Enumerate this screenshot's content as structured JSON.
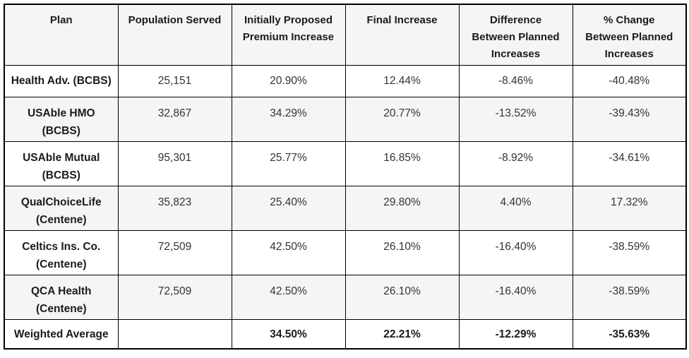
{
  "colors": {
    "border": "#000000",
    "stripe_background": "#f5f5f5",
    "header_background": "#f5f5f5",
    "heading_text": "#1b1b1b",
    "body_text": "#333333"
  },
  "table": {
    "columns": [
      {
        "label": "Plan",
        "lines": [
          "Plan"
        ]
      },
      {
        "label": "Population Served",
        "lines": [
          "Population Served"
        ]
      },
      {
        "label": "Initially Proposed Premium Increase",
        "lines": [
          "Initially Proposed",
          "Premium Increase"
        ]
      },
      {
        "label": "Final Increase",
        "lines": [
          "Final Increase"
        ]
      },
      {
        "label": "Difference Between Planned Increases",
        "lines": [
          "Difference",
          "Between Planned",
          "Increases"
        ]
      },
      {
        "label": "% Change Between Planned Increases",
        "lines": [
          "% Change",
          "Between Planned",
          "Increases"
        ]
      }
    ],
    "rows": [
      {
        "plan": "Health Adv. (BCBS)",
        "plan_lines": [
          "Health Adv. (BCBS)"
        ],
        "population": "25,151",
        "initially_proposed": "20.90%",
        "final_increase": "12.44%",
        "difference": "-8.46%",
        "pct_change": "-40.48%"
      },
      {
        "plan": "USAble HMO (BCBS)",
        "plan_lines": [
          "USAble HMO",
          "(BCBS)"
        ],
        "population": "32,867",
        "initially_proposed": "34.29%",
        "final_increase": "20.77%",
        "difference": "-13.52%",
        "pct_change": "-39.43%"
      },
      {
        "plan": "USAble Mutual (BCBS)",
        "plan_lines": [
          "USAble Mutual",
          "(BCBS)"
        ],
        "population": "95,301",
        "initially_proposed": "25.77%",
        "final_increase": "16.85%",
        "difference": "-8.92%",
        "pct_change": "-34.61%"
      },
      {
        "plan": "QualChoiceLife (Centene)",
        "plan_lines": [
          "QualChoiceLife",
          "(Centene)"
        ],
        "population": "35,823",
        "initially_proposed": "25.40%",
        "final_increase": "29.80%",
        "difference": "4.40%",
        "pct_change": "17.32%"
      },
      {
        "plan": "Celtics Ins. Co. (Centene)",
        "plan_lines": [
          "Celtics Ins. Co.",
          "(Centene)"
        ],
        "population": "72,509",
        "initially_proposed": "42.50%",
        "final_increase": "26.10%",
        "difference": "-16.40%",
        "pct_change": "-38.59%"
      },
      {
        "plan": "QCA Health (Centene)",
        "plan_lines": [
          "QCA Health",
          "(Centene)"
        ],
        "population": "72,509",
        "initially_proposed": "42.50%",
        "final_increase": "26.10%",
        "difference": "-16.40%",
        "pct_change": "-38.59%"
      }
    ],
    "footer_row": {
      "plan": "Weighted Average",
      "population": "",
      "initially_proposed": "34.50%",
      "final_increase": "22.21%",
      "difference": "-12.29%",
      "pct_change": "-35.63%"
    }
  }
}
